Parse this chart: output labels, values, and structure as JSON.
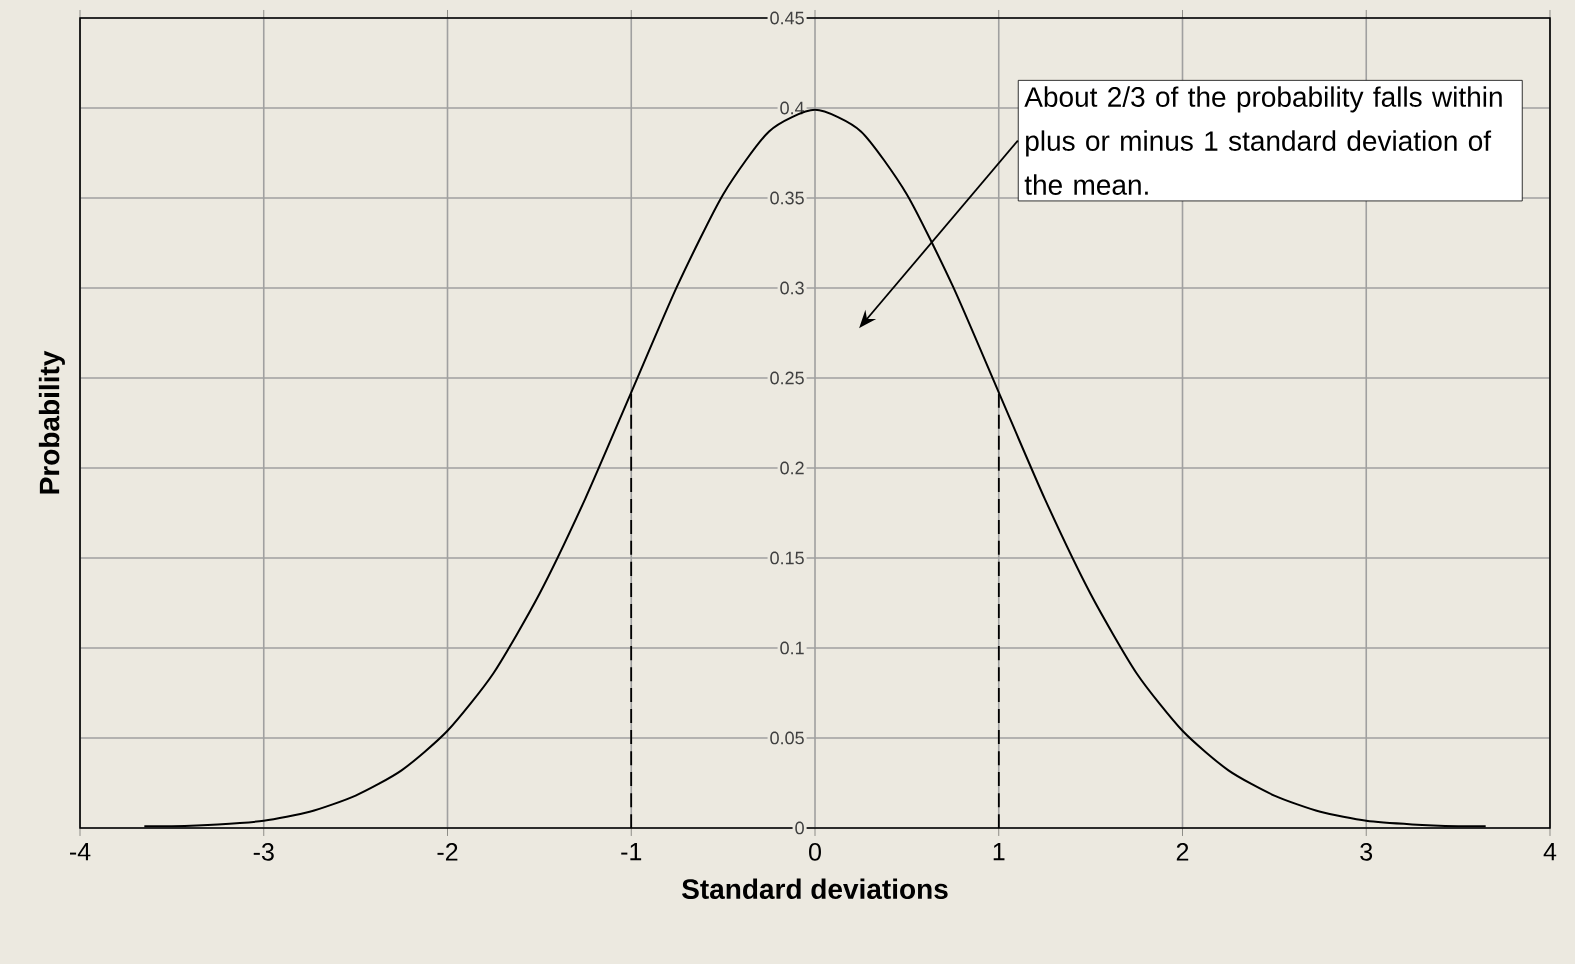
{
  "chart_data": {
    "type": "line",
    "xlabel": "Standard deviations",
    "ylabel": "Probability",
    "xlim": [
      -4,
      4
    ],
    "ylim": [
      0,
      0.45
    ],
    "xticks": [
      -4,
      -3,
      -2,
      -1,
      0,
      1,
      2,
      3,
      4
    ],
    "yticks": [
      0,
      0.05,
      0.1,
      0.15,
      0.2,
      0.25,
      0.3,
      0.35,
      0.4,
      0.45
    ],
    "grid": true,
    "marker": "none",
    "series": [
      {
        "color": "#000000",
        "line_style": "solid",
        "x": [
          -3.65,
          -3.5,
          -3.25,
          -3,
          -2.75,
          -2.5,
          -2.25,
          -2,
          -1.75,
          -1.5,
          -1.25,
          -1,
          -0.75,
          -0.5,
          -0.25,
          0,
          0.25,
          0.5,
          0.75,
          1,
          1.25,
          1.5,
          1.75,
          2,
          2.25,
          2.5,
          2.75,
          3,
          3.25,
          3.5,
          3.65
        ],
        "values": [
          0.001,
          0.001,
          0.002,
          0.004,
          0.009,
          0.018,
          0.032,
          0.054,
          0.086,
          0.13,
          0.183,
          0.242,
          0.301,
          0.352,
          0.387,
          0.399,
          0.387,
          0.352,
          0.301,
          0.242,
          0.183,
          0.13,
          0.086,
          0.054,
          0.032,
          0.018,
          0.009,
          0.004,
          0.002,
          0.001,
          0.001
        ]
      },
      {
        "color": "#000000",
        "line_style": "dashed",
        "x": [
          -1,
          -1
        ],
        "values": [
          0,
          0.242
        ]
      },
      {
        "color": "#000000",
        "line_style": "dashed",
        "x": [
          1,
          1
        ],
        "values": [
          0,
          0.242
        ]
      }
    ],
    "annotations": [
      "About 2/3 of the probability falls within plus or minus 1 standard deviation of the mean."
    ]
  }
}
